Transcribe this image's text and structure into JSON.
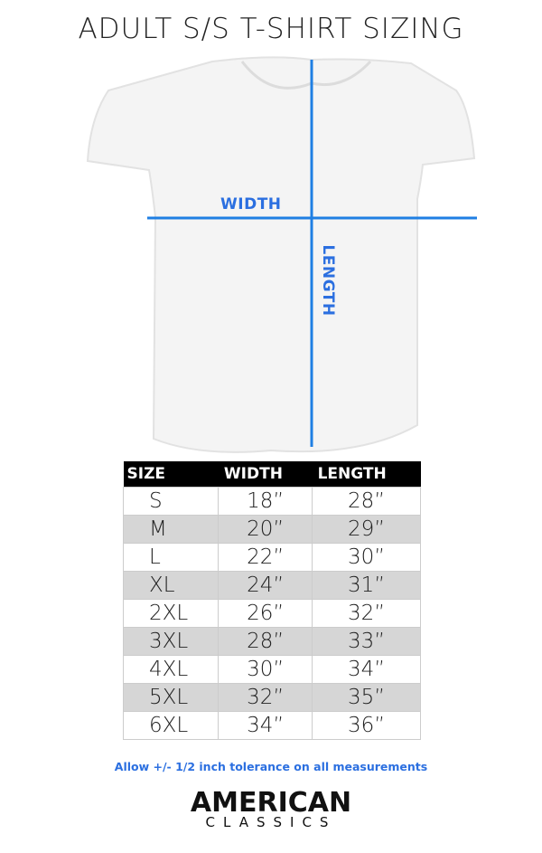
{
  "title": "ADULT S/S T-SHIRT SIZING",
  "diagram": {
    "width_label": "WIDTH",
    "length_label": "LENGTH",
    "line_color": "#1f7fe3"
  },
  "table": {
    "headers": [
      "SIZE",
      "WIDTH",
      "LENGTH"
    ],
    "rows": [
      [
        "S",
        "18”",
        "28”"
      ],
      [
        "M",
        "20”",
        "29”"
      ],
      [
        "L",
        "22”",
        "30”"
      ],
      [
        "XL",
        "24”",
        "31”"
      ],
      [
        "2XL",
        "26”",
        "32”"
      ],
      [
        "3XL",
        "28”",
        "33”"
      ],
      [
        "4XL",
        "30”",
        "34”"
      ],
      [
        "5XL",
        "32”",
        "35”"
      ],
      [
        "6XL",
        "34”",
        "36”"
      ]
    ]
  },
  "note": "Allow +/- 1/2 inch tolerance on all measurements",
  "logo": {
    "line1": "AMERICAN",
    "line2": "CLASSICS"
  }
}
